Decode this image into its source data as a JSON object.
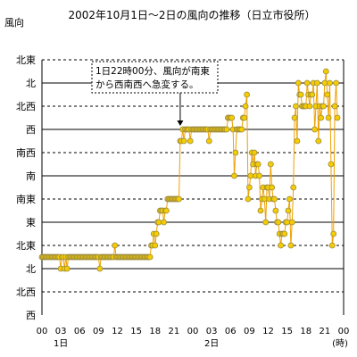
{
  "chart_data": {
    "type": "line",
    "title": "2002年10月1日～2日の風向の推移（日立市役所）",
    "ylabel": "風向",
    "y_categories": [
      "西",
      "北西",
      "北",
      "北東",
      "東",
      "南東",
      "南",
      "南西",
      "西",
      "北西",
      "北",
      "北東"
    ],
    "y_category_index_range": [
      0,
      11
    ],
    "x_range_hours": [
      0,
      48
    ],
    "x_tick_labels": [
      "00",
      "03",
      "06",
      "09",
      "12",
      "15",
      "18",
      "21",
      "00",
      "03",
      "06",
      "09",
      "12",
      "15",
      "18",
      "21",
      "00"
    ],
    "x_unit": "(時)",
    "day_labels": [
      {
        "text": "1日",
        "hour": 3
      },
      {
        "text": "2日",
        "hour": 27
      }
    ],
    "grid": {
      "solid_levels": [
        2,
        4,
        6,
        8,
        10
      ],
      "dashed_levels": [
        1,
        3,
        5,
        7,
        9,
        11
      ]
    },
    "annotation": {
      "lines": [
        "1日22時00分、風向が南東",
        "から西南西へ急変する。"
      ],
      "arrow_to": {
        "hour": 22,
        "level": 8
      }
    },
    "series": [
      {
        "points": [
          [
            0.0,
            2.5
          ],
          [
            0.2,
            2.5
          ],
          [
            0.4,
            2.5
          ],
          [
            0.6,
            2.5
          ],
          [
            0.8,
            2.5
          ],
          [
            1.0,
            2.5
          ],
          [
            1.2,
            2.5
          ],
          [
            1.4,
            2.5
          ],
          [
            1.6,
            2.5
          ],
          [
            1.8,
            2.5
          ],
          [
            2.0,
            2.5
          ],
          [
            2.2,
            2.5
          ],
          [
            2.4,
            2.5
          ],
          [
            2.6,
            2.5
          ],
          [
            2.8,
            2.5
          ],
          [
            3.0,
            2.0
          ],
          [
            3.2,
            2.5
          ],
          [
            3.4,
            2.5
          ],
          [
            3.6,
            2.0
          ],
          [
            3.8,
            2.5
          ],
          [
            4.0,
            2.0
          ],
          [
            4.2,
            2.5
          ],
          [
            4.4,
            2.5
          ],
          [
            4.6,
            2.5
          ],
          [
            4.8,
            2.5
          ],
          [
            5.0,
            2.5
          ],
          [
            5.2,
            2.5
          ],
          [
            5.4,
            2.5
          ],
          [
            5.6,
            2.5
          ],
          [
            5.8,
            2.5
          ],
          [
            6.0,
            2.5
          ],
          [
            6.2,
            2.5
          ],
          [
            6.4,
            2.5
          ],
          [
            6.6,
            2.5
          ],
          [
            6.8,
            2.5
          ],
          [
            7.0,
            2.5
          ],
          [
            7.2,
            2.5
          ],
          [
            7.4,
            2.5
          ],
          [
            7.6,
            2.5
          ],
          [
            7.8,
            2.5
          ],
          [
            8.0,
            2.5
          ],
          [
            8.2,
            2.5
          ],
          [
            8.4,
            2.5
          ],
          [
            8.6,
            2.5
          ],
          [
            8.8,
            2.5
          ],
          [
            9.0,
            2.5
          ],
          [
            9.2,
            2.0
          ],
          [
            9.4,
            2.5
          ],
          [
            9.6,
            2.5
          ],
          [
            9.8,
            2.5
          ],
          [
            10.0,
            2.5
          ],
          [
            10.2,
            2.5
          ],
          [
            10.4,
            2.5
          ],
          [
            10.6,
            2.5
          ],
          [
            10.8,
            2.5
          ],
          [
            11.0,
            2.5
          ],
          [
            11.2,
            2.5
          ],
          [
            11.4,
            2.5
          ],
          [
            11.6,
            3.0
          ],
          [
            11.8,
            2.5
          ],
          [
            12.0,
            2.5
          ],
          [
            12.2,
            2.5
          ],
          [
            12.4,
            2.5
          ],
          [
            12.6,
            2.5
          ],
          [
            12.8,
            2.5
          ],
          [
            13.0,
            2.5
          ],
          [
            13.2,
            2.5
          ],
          [
            13.4,
            2.5
          ],
          [
            13.6,
            2.5
          ],
          [
            13.8,
            2.5
          ],
          [
            14.0,
            2.5
          ],
          [
            14.2,
            2.5
          ],
          [
            14.4,
            2.5
          ],
          [
            14.6,
            2.5
          ],
          [
            14.8,
            2.5
          ],
          [
            15.0,
            2.5
          ],
          [
            15.2,
            2.5
          ],
          [
            15.4,
            2.5
          ],
          [
            15.6,
            2.5
          ],
          [
            15.8,
            2.5
          ],
          [
            16.0,
            2.5
          ],
          [
            16.2,
            2.5
          ],
          [
            16.4,
            2.5
          ],
          [
            16.6,
            2.5
          ],
          [
            16.8,
            2.5
          ],
          [
            17.0,
            2.5
          ],
          [
            17.2,
            2.5
          ],
          [
            17.4,
            3.0
          ],
          [
            17.6,
            3.0
          ],
          [
            17.8,
            3.5
          ],
          [
            18.0,
            3.0
          ],
          [
            18.2,
            3.5
          ],
          [
            18.4,
            4.0
          ],
          [
            18.6,
            4.0
          ],
          [
            18.8,
            4.5
          ],
          [
            19.0,
            4.5
          ],
          [
            19.2,
            4.5
          ],
          [
            19.4,
            4.0
          ],
          [
            19.6,
            4.5
          ],
          [
            19.8,
            4.5
          ],
          [
            20.0,
            5.0
          ],
          [
            20.2,
            5.0
          ],
          [
            20.4,
            5.0
          ],
          [
            20.6,
            5.0
          ],
          [
            20.8,
            5.0
          ],
          [
            21.0,
            5.0
          ],
          [
            21.2,
            5.0
          ],
          [
            21.4,
            5.0
          ],
          [
            21.6,
            5.0
          ],
          [
            21.8,
            5.0
          ],
          [
            22.0,
            7.5
          ],
          [
            22.2,
            7.5
          ],
          [
            22.4,
            8.0
          ],
          [
            22.6,
            7.5
          ],
          [
            22.8,
            8.0
          ],
          [
            23.0,
            8.0
          ],
          [
            23.2,
            8.0
          ],
          [
            23.4,
            8.0
          ],
          [
            23.6,
            7.5
          ],
          [
            23.8,
            8.0
          ],
          [
            24.0,
            8.0
          ],
          [
            24.2,
            8.0
          ],
          [
            24.4,
            8.0
          ],
          [
            24.6,
            8.0
          ],
          [
            24.8,
            8.0
          ],
          [
            25.0,
            8.0
          ],
          [
            25.2,
            8.0
          ],
          [
            25.4,
            8.0
          ],
          [
            25.6,
            8.0
          ],
          [
            25.8,
            8.0
          ],
          [
            26.0,
            8.0
          ],
          [
            26.2,
            8.0
          ],
          [
            26.4,
            8.0
          ],
          [
            26.6,
            7.5
          ],
          [
            26.8,
            8.0
          ],
          [
            27.0,
            8.0
          ],
          [
            27.2,
            8.0
          ],
          [
            27.4,
            8.0
          ],
          [
            27.6,
            8.0
          ],
          [
            27.8,
            8.0
          ],
          [
            28.0,
            8.0
          ],
          [
            28.2,
            8.0
          ],
          [
            28.4,
            8.0
          ],
          [
            28.6,
            8.0
          ],
          [
            28.8,
            8.0
          ],
          [
            29.0,
            8.0
          ],
          [
            29.2,
            8.0
          ],
          [
            29.4,
            8.0
          ],
          [
            29.6,
            8.5
          ],
          [
            29.8,
            8.5
          ],
          [
            30.0,
            8.5
          ],
          [
            30.2,
            8.5
          ],
          [
            30.4,
            8.0
          ],
          [
            30.6,
            6.0
          ],
          [
            30.8,
            7.0
          ],
          [
            31.0,
            8.0
          ],
          [
            31.2,
            8.0
          ],
          [
            31.4,
            8.0
          ],
          [
            31.6,
            8.0
          ],
          [
            31.8,
            8.0
          ],
          [
            32.0,
            8.5
          ],
          [
            32.2,
            8.5
          ],
          [
            32.4,
            9.0
          ],
          [
            32.6,
            9.5
          ],
          [
            32.8,
            5.0
          ],
          [
            33.0,
            5.5
          ],
          [
            33.2,
            6.0
          ],
          [
            33.4,
            7.0
          ],
          [
            33.6,
            6.5
          ],
          [
            33.8,
            7.0
          ],
          [
            34.0,
            6.0
          ],
          [
            34.2,
            6.5
          ],
          [
            34.4,
            6.5
          ],
          [
            34.6,
            6.0
          ],
          [
            34.8,
            4.5
          ],
          [
            35.0,
            5.0
          ],
          [
            35.2,
            5.5
          ],
          [
            35.4,
            5.0
          ],
          [
            35.6,
            4.0
          ],
          [
            35.8,
            5.5
          ],
          [
            36.0,
            5.5
          ],
          [
            36.2,
            5.0
          ],
          [
            36.4,
            6.5
          ],
          [
            36.6,
            5.5
          ],
          [
            36.8,
            5.0
          ],
          [
            37.0,
            5.0
          ],
          [
            37.2,
            4.5
          ],
          [
            37.4,
            4.0
          ],
          [
            37.6,
            4.0
          ],
          [
            37.8,
            3.5
          ],
          [
            38.0,
            3.0
          ],
          [
            38.2,
            3.5
          ],
          [
            38.4,
            3.5
          ],
          [
            38.6,
            3.5
          ],
          [
            38.8,
            4.0
          ],
          [
            39.0,
            4.0
          ],
          [
            39.2,
            4.5
          ],
          [
            39.4,
            5.0
          ],
          [
            39.6,
            3.0
          ],
          [
            39.8,
            4.0
          ],
          [
            40.0,
            5.5
          ],
          [
            40.2,
            8.5
          ],
          [
            40.4,
            9.0
          ],
          [
            40.6,
            7.5
          ],
          [
            40.8,
            10.0
          ],
          [
            41.0,
            9.5
          ],
          [
            41.2,
            9.5
          ],
          [
            41.4,
            9.0
          ],
          [
            41.6,
            9.0
          ],
          [
            41.8,
            9.0
          ],
          [
            42.0,
            9.0
          ],
          [
            42.2,
            10.0
          ],
          [
            42.4,
            9.5
          ],
          [
            42.6,
            9.0
          ],
          [
            42.8,
            9.5
          ],
          [
            43.0,
            9.5
          ],
          [
            43.2,
            10.0
          ],
          [
            43.4,
            8.0
          ],
          [
            43.6,
            9.0
          ],
          [
            43.8,
            10.0
          ],
          [
            44.0,
            7.5
          ],
          [
            44.2,
            9.0
          ],
          [
            44.4,
            8.5
          ],
          [
            44.6,
            9.0
          ],
          [
            44.8,
            9.0
          ],
          [
            45.0,
            10.0
          ],
          [
            45.2,
            10.5
          ],
          [
            45.4,
            9.5
          ],
          [
            45.6,
            8.5
          ],
          [
            45.8,
            10.0
          ],
          [
            46.0,
            6.5
          ],
          [
            46.2,
            3.0
          ],
          [
            46.4,
            3.5
          ],
          [
            46.6,
            9.0
          ],
          [
            46.8,
            10.0
          ],
          [
            47.0,
            8.5
          ]
        ]
      }
    ],
    "colors": {
      "line": "#f0a000",
      "marker_fill": "#f5cc00",
      "marker_edge": "#9a8a40",
      "grid": "#000000"
    }
  }
}
